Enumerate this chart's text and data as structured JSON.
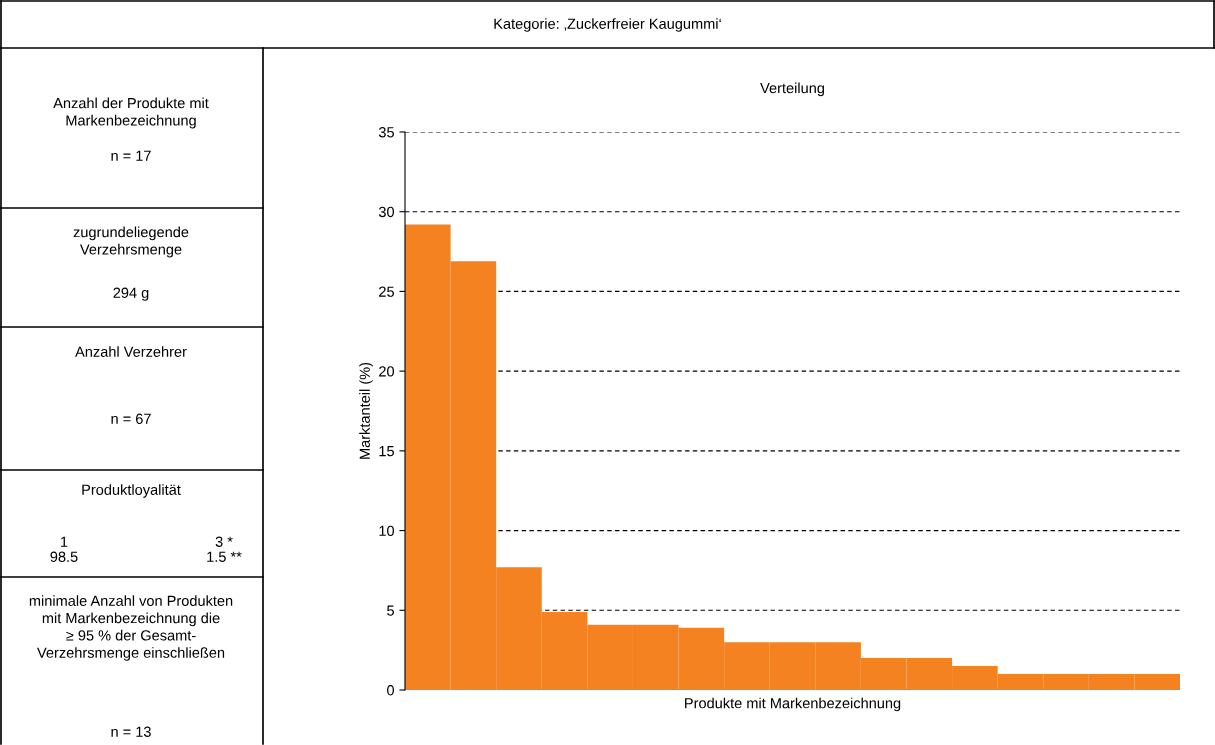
{
  "chart_data": [
    {
      "type": "other",
      "title": "Kategorie: ‚Zuckerfreier Kaugummi‘",
      "annotations": [
        "Anzahl der Produkte mit\nMarkenbezeichnung",
        "n = 17",
        "zugrundeliegende\nVerzehrsmenge",
        "294 g",
        "Anzahl Verzehrer",
        "n = 67",
        "Produktloyalität",
        "1",
        "3 *",
        "98.5",
        "1.5 **",
        "minimale Anzahl von Produkten\nmit Markenbezeichnung die\n≥ 95 % der Gesamt-\nVerzehrsmenge einschließen",
        "n = 13"
      ]
    },
    {
      "type": "bar",
      "title": "Verteilung",
      "xlabel": "Produkte mit Markenbezeichnung",
      "ylabel": "Marktanteil (%)",
      "categories": [
        null,
        null,
        null,
        null,
        null,
        null,
        null,
        null,
        null,
        null,
        null,
        null,
        null,
        null,
        null,
        null,
        null
      ],
      "values": [
        29.2,
        26.9,
        7.7,
        4.9,
        4.1,
        4.1,
        3.9,
        3.0,
        3.0,
        3.0,
        2.0,
        2.0,
        1.5,
        1.0,
        1.0,
        1.0,
        1.0
      ],
      "color": "#f58220",
      "ylim": [
        0,
        35
      ],
      "yticks": [
        0,
        5,
        10,
        15,
        20,
        25,
        30,
        35
      ],
      "grid": "y",
      "line_style": "dashed"
    }
  ]
}
